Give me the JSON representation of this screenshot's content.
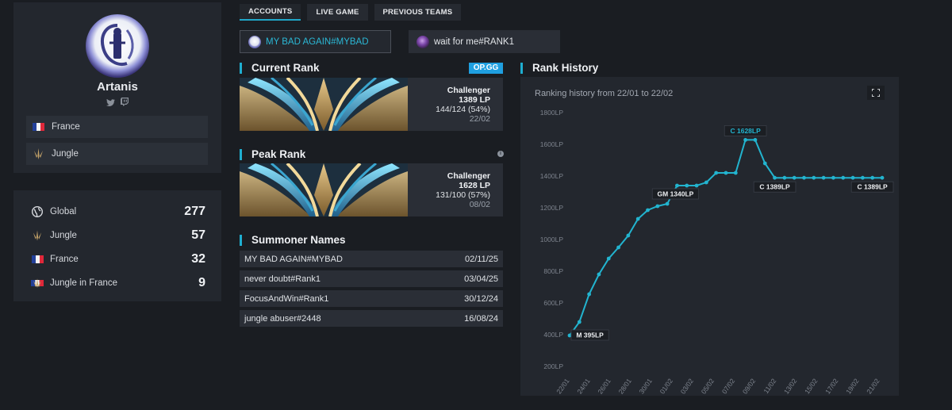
{
  "profile": {
    "name": "Artanis",
    "country": "France",
    "role": "Jungle"
  },
  "leaderboard": [
    {
      "label": "Global",
      "value": "277",
      "icon": "globe-icon"
    },
    {
      "label": "Jungle",
      "value": "57",
      "icon": "jungle-icon"
    },
    {
      "label": "France",
      "value": "32",
      "icon": "france-flag-icon"
    },
    {
      "label": "Jungle in France",
      "value": "9",
      "icon": "jungle-france-icon"
    }
  ],
  "tabs": [
    "ACCOUNTS",
    "LIVE GAME",
    "PREVIOUS TEAMS"
  ],
  "accounts": [
    "MY BAD AGAIN#MYBAD",
    "wait for me#RANK1"
  ],
  "current_rank": {
    "title": "Current Rank",
    "badge": "OP.GG",
    "tier": "Challenger",
    "lp": "1389 LP",
    "record": "144/124 (54%)",
    "date": "22/02"
  },
  "peak_rank": {
    "title": "Peak Rank",
    "info": "i",
    "tier": "Challenger",
    "lp": "1628 LP",
    "record": "131/100 (57%)",
    "date": "08/02"
  },
  "summoner_names": {
    "title": "Summoner Names",
    "rows": [
      {
        "name": "MY BAD AGAIN#MYBAD",
        "date": "02/11/25"
      },
      {
        "name": "never doubt#Rank1",
        "date": "03/04/25"
      },
      {
        "name": "FocusAndWin#Rank1",
        "date": "30/12/24"
      },
      {
        "name": "jungle abuser#2448",
        "date": "16/08/24"
      }
    ]
  },
  "rank_history": {
    "title": "Rank History",
    "subtitle": "Ranking history from 22/01 to 22/02"
  },
  "colors": {
    "accent": "#1faed0",
    "line": "#22b4cf",
    "opgg": "#1f9fe0"
  },
  "chart_data": {
    "type": "line",
    "y_ticks": [
      "1800LP",
      "1600LP",
      "1400LP",
      "1200LP",
      "1000LP",
      "800LP",
      "600LP",
      "400LP",
      "200LP"
    ],
    "ylim": [
      200,
      1800
    ],
    "x_ticks": [
      "22/01",
      "24/01",
      "26/01",
      "28/01",
      "30/01",
      "01/02",
      "03/02",
      "05/02",
      "07/02",
      "09/02",
      "11/02",
      "13/02",
      "15/02",
      "17/02",
      "19/02",
      "21/02"
    ],
    "grid": false,
    "series": [
      {
        "values": [
          395,
          480,
          655,
          780,
          880,
          950,
          1025,
          1130,
          1185,
          1210,
          1225,
          1340,
          1340,
          1340,
          1360,
          1420,
          1420,
          1420,
          1628,
          1628,
          1480,
          1389,
          1389,
          1389,
          1389,
          1389,
          1389,
          1389,
          1389,
          1389,
          1389,
          1389,
          1389
        ]
      }
    ],
    "annotations": [
      {
        "label": "M 395LP",
        "point": 0,
        "highlight": false
      },
      {
        "label": "GM 1340LP",
        "point": 11,
        "highlight": false
      },
      {
        "label": "C 1628LP",
        "point": 18,
        "highlight": true
      },
      {
        "label": "C 1389LP",
        "point": 21,
        "highlight": false
      },
      {
        "label": "C 1389LP",
        "point": 32,
        "highlight": false
      }
    ]
  }
}
